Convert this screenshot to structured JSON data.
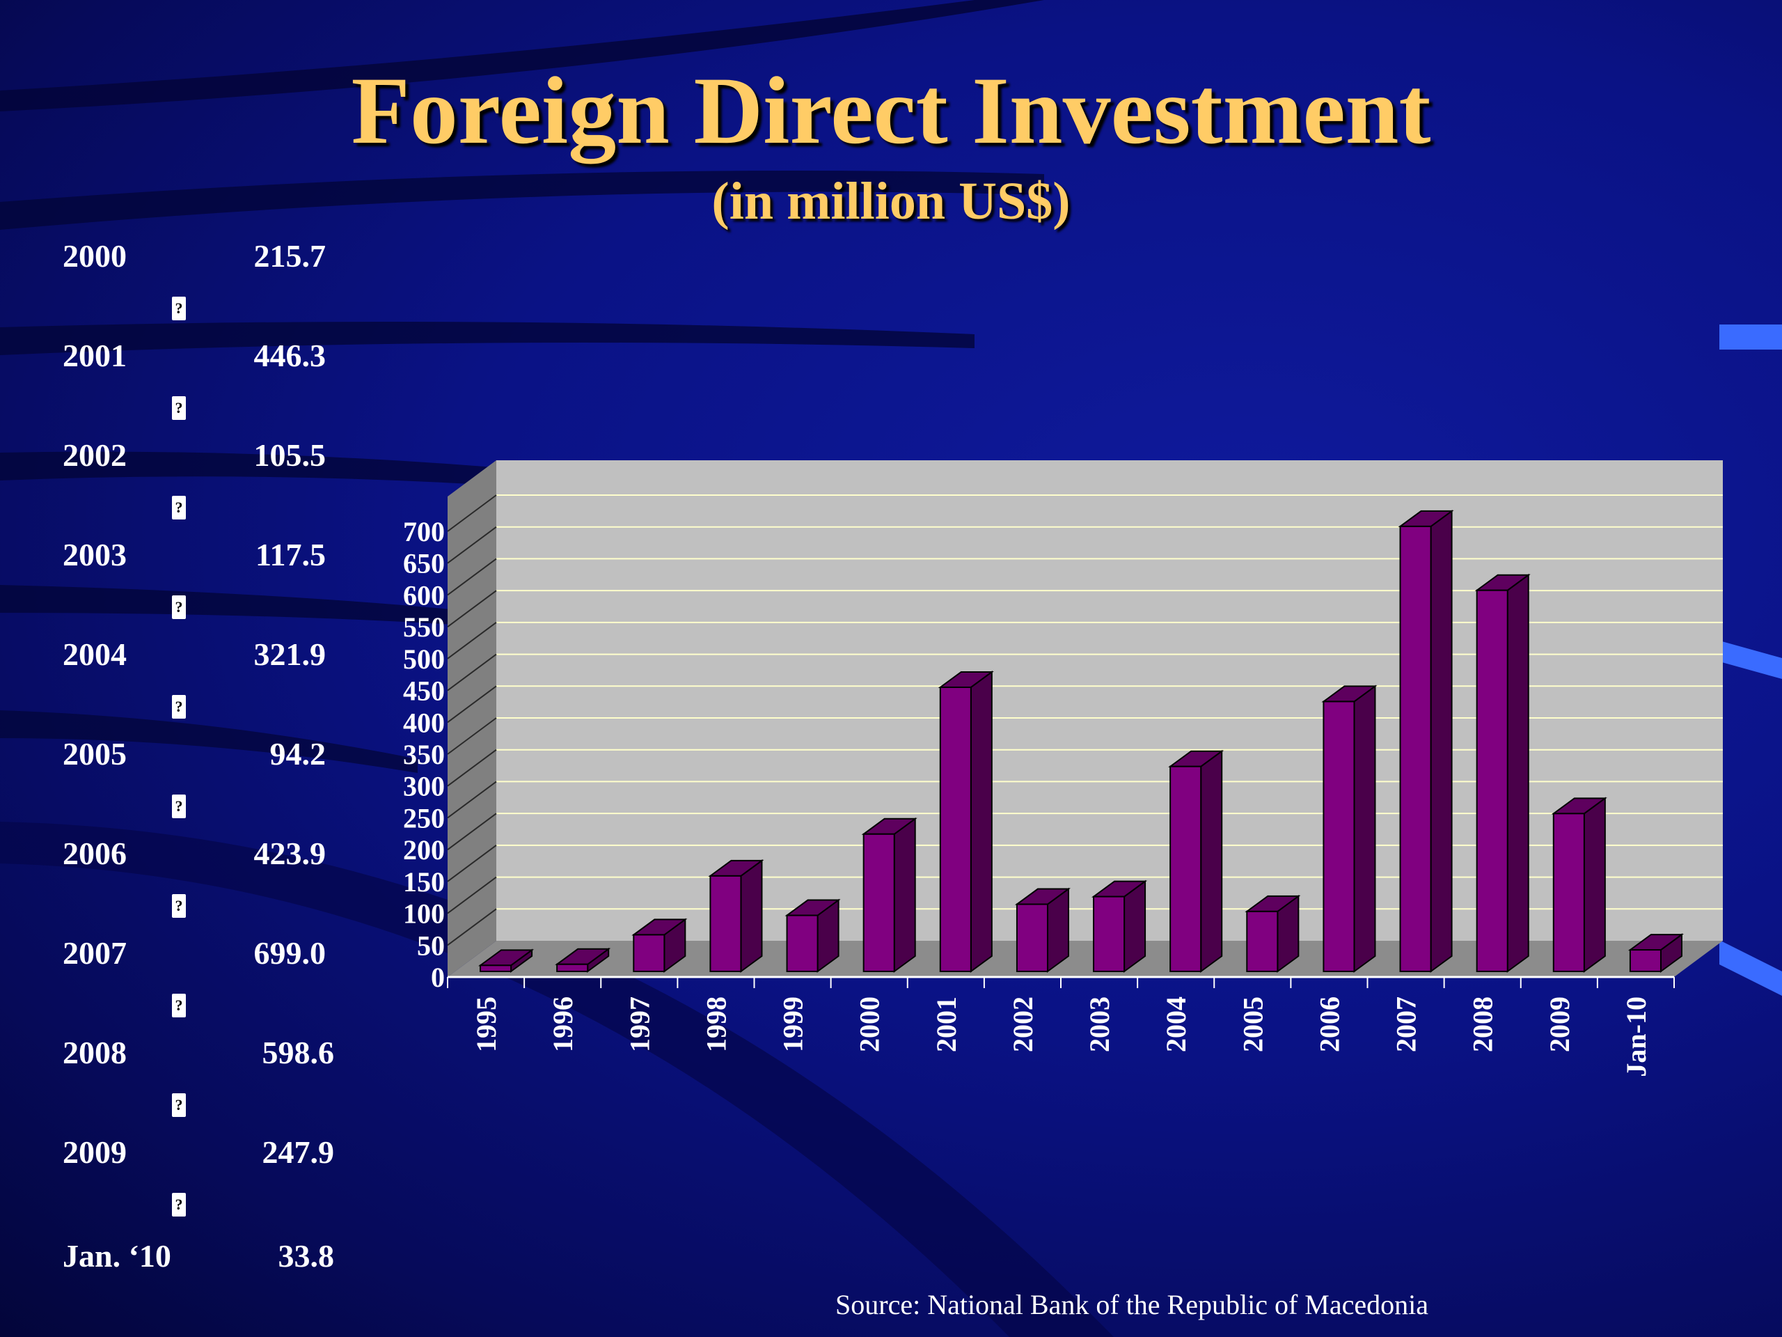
{
  "slide": {
    "title": "Foreign Direct Investment",
    "subtitle": "(in million US$)",
    "source": "Source: National Bank of the Republic of Macedonia"
  },
  "side_table": [
    {
      "year": "2000",
      "value": "215.7"
    },
    {
      "year": "2001",
      "value": "446.3"
    },
    {
      "year": "2002",
      "value": "105.5"
    },
    {
      "year": "2003",
      "value": "117.5"
    },
    {
      "year": "2004",
      "value": "321.9"
    },
    {
      "year": "2005",
      "value": "94.2"
    },
    {
      "year": "2006",
      "value": "423.9"
    },
    {
      "year": "2007",
      "value": "699.0"
    },
    {
      "year": "2008",
      "value": "598.6"
    },
    {
      "year": "2009",
      "value": "247.9"
    },
    {
      "year": "Jan. ‘10",
      "value": "33.8"
    }
  ],
  "bullet_symbol": "?",
  "colors": {
    "background": "#0a1285",
    "title": "#ffcc66",
    "bar_front": "#800080",
    "bar_top": "#5e005e",
    "bar_side": "#4a004a",
    "plot_back": "#c0c0c0",
    "plot_side": "#808080",
    "plot_floor": "#8c8c8c",
    "gridline": "#ffffcc",
    "axis_text": "#ffffff"
  },
  "chart_data": {
    "type": "bar",
    "title": "",
    "xlabel": "",
    "ylabel": "",
    "categories": [
      "1995",
      "1996",
      "1997",
      "1998",
      "1999",
      "2000",
      "2001",
      "2002",
      "2003",
      "2004",
      "2005",
      "2006",
      "2007",
      "2008",
      "2009",
      "Jan-10"
    ],
    "values": [
      9.5,
      11.2,
      57.5,
      150.0,
      88.0,
      215.7,
      446.3,
      105.5,
      117.5,
      321.9,
      94.2,
      423.9,
      699.0,
      598.6,
      247.9,
      33.8
    ],
    "ylim": [
      0,
      700
    ],
    "yticks": [
      0,
      50,
      100,
      150,
      200,
      250,
      300,
      350,
      400,
      450,
      500,
      550,
      600,
      650,
      700
    ],
    "grid": true,
    "style": "3d-column",
    "legend": "none"
  }
}
